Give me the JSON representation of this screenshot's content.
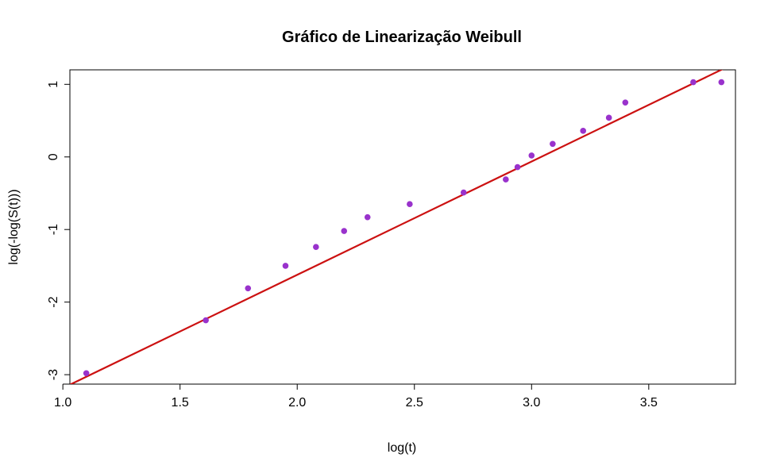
{
  "chart_data": {
    "type": "scatter",
    "title": "Gráfico de Linearização Weibull",
    "xlabel": "log(t)",
    "ylabel": "log(-log(S(t)))",
    "xlim": [
      1.03,
      3.87
    ],
    "ylim": [
      -3.13,
      1.2
    ],
    "x_ticks": [
      1.0,
      1.5,
      2.0,
      2.5,
      3.0,
      3.5
    ],
    "x_tick_labels": [
      "1.0",
      "1.5",
      "2.0",
      "2.5",
      "3.0",
      "3.5"
    ],
    "y_ticks": [
      -3,
      -2,
      -1,
      0,
      1
    ],
    "y_tick_labels": [
      "-3",
      "-2",
      "-1",
      "0",
      "1"
    ],
    "grid": false,
    "point_color": "#9932CC",
    "line_color": "#CC1111",
    "points": [
      {
        "x": 1.1,
        "y": -2.98
      },
      {
        "x": 1.61,
        "y": -2.25
      },
      {
        "x": 1.79,
        "y": -1.81
      },
      {
        "x": 1.95,
        "y": -1.5
      },
      {
        "x": 2.08,
        "y": -1.24
      },
      {
        "x": 2.2,
        "y": -1.02
      },
      {
        "x": 2.3,
        "y": -0.83
      },
      {
        "x": 2.48,
        "y": -0.65
      },
      {
        "x": 2.71,
        "y": -0.49
      },
      {
        "x": 2.89,
        "y": -0.31
      },
      {
        "x": 2.94,
        "y": -0.14
      },
      {
        "x": 3.0,
        "y": 0.02
      },
      {
        "x": 3.09,
        "y": 0.18
      },
      {
        "x": 3.22,
        "y": 0.36
      },
      {
        "x": 3.33,
        "y": 0.54
      },
      {
        "x": 3.4,
        "y": 0.75
      },
      {
        "x": 3.69,
        "y": 1.03
      },
      {
        "x": 3.81,
        "y": 1.03
      }
    ],
    "fit_line": {
      "intercept": -4.746,
      "slope": 1.561
    }
  }
}
